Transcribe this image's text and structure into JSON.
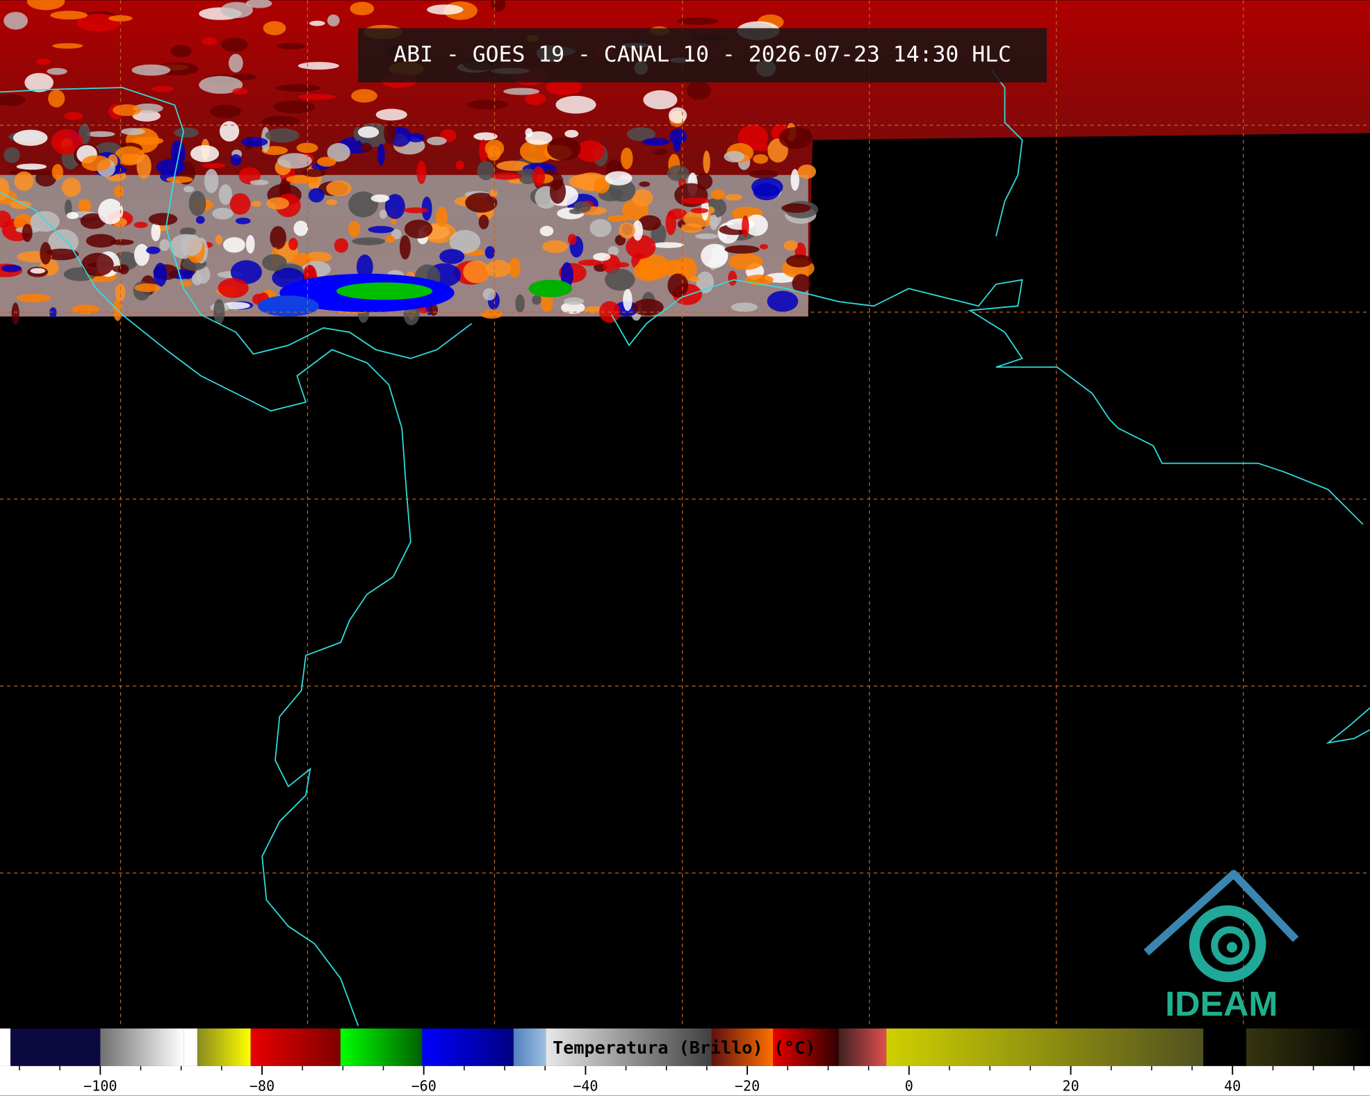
{
  "title": "ABI - GOES 19 - CANAL 10 - 2026-07-23 14:30 HLC",
  "logo": "IDEAM",
  "colorbar": {
    "label": "Temperatura (Brillo) (°C)",
    "lim": [
      -112.4,
      57
    ],
    "ticks": [
      {
        "value": -100,
        "label": "−100"
      },
      {
        "value": -80,
        "label": "−80"
      },
      {
        "value": -60,
        "label": "−60"
      },
      {
        "value": -40,
        "label": "−40"
      },
      {
        "value": -20,
        "label": "−20"
      },
      0,
      20,
      40
    ],
    "minor_step": 5,
    "segments": [
      {
        "from": -112.4,
        "to": -111.1,
        "colors": [
          "#ffffff",
          "#ffffff"
        ]
      },
      {
        "from": -111.1,
        "to": -100,
        "colors": [
          "#0a0a40",
          "#0a0a40"
        ]
      },
      {
        "from": -100,
        "to": -89.7,
        "colors": [
          "#707070",
          "#ffffff"
        ]
      },
      {
        "from": -89.7,
        "to": -88,
        "colors": [
          "#ffffff",
          "#ffffff"
        ]
      },
      {
        "from": -88,
        "to": -81.4,
        "colors": [
          "#8a8a20",
          "#ffff00"
        ]
      },
      {
        "from": -81.4,
        "to": -70.3,
        "colors": [
          "#e80000",
          "#800000"
        ]
      },
      {
        "from": -70.3,
        "to": -60.2,
        "colors": [
          "#00ff00",
          "#006000"
        ]
      },
      {
        "from": -60.2,
        "to": -48.9,
        "colors": [
          "#0000ff",
          "#000080"
        ]
      },
      {
        "from": -48.9,
        "to": -44.9,
        "colors": [
          "#5080c0",
          "#9ec0e0"
        ]
      },
      {
        "from": -44.9,
        "to": -24.4,
        "colors": [
          "#e8e8e8",
          "#404040"
        ]
      },
      {
        "from": -24.4,
        "to": -16.8,
        "colors": [
          "#601010",
          "#ff7000"
        ]
      },
      {
        "from": -16.8,
        "to": -8.7,
        "colors": [
          "#e80000",
          "#300000"
        ]
      },
      {
        "from": -8.7,
        "to": -2.8,
        "colors": [
          "#402020",
          "#e05050"
        ]
      },
      {
        "from": -2.8,
        "to": 36.4,
        "colors": [
          "#d0d000",
          "#505020"
        ]
      },
      {
        "from": 36.4,
        "to": 41.7,
        "colors": [
          "#000000",
          "#000000"
        ]
      },
      {
        "from": 41.7,
        "to": 57,
        "colors": [
          "#353510",
          "#000000"
        ]
      }
    ]
  }
}
